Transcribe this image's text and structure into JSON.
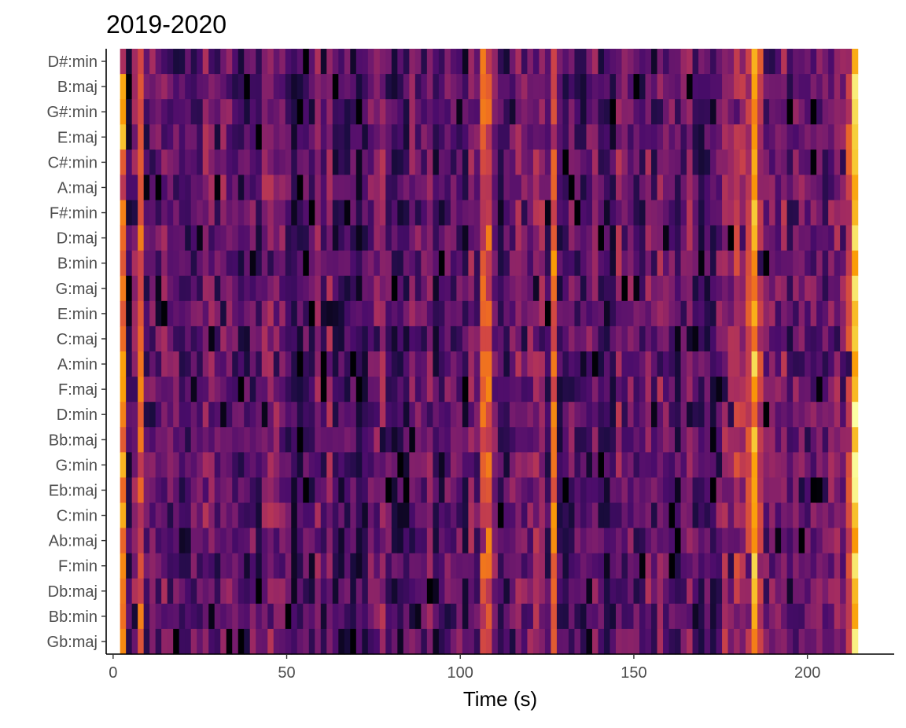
{
  "chart_data": {
    "type": "heatmap",
    "title": "2019-2020",
    "xlabel": "Time (s)",
    "ylabel": "",
    "xlim": [
      -2,
      225
    ],
    "x_ticks": [
      0,
      50,
      100,
      150,
      200
    ],
    "x_tick_labels": [
      "0",
      "50",
      "100",
      "150",
      "200"
    ],
    "x_range": [
      2,
      214.5
    ],
    "frame_width_s": 1.7,
    "y_categories": [
      "D#:min",
      "B:maj",
      "G#:min",
      "E:maj",
      "C#:min",
      "A:maj",
      "F#:min",
      "D:maj",
      "B:min",
      "G:maj",
      "E:min",
      "C:maj",
      "A:min",
      "F:maj",
      "D:min",
      "Bb:maj",
      "G:min",
      "Eb:maj",
      "C:min",
      "Ab:maj",
      "F:min",
      "Db:maj",
      "Bb:min",
      "Gb:maj"
    ],
    "colormap": "inferno",
    "value_range": [
      0,
      1
    ],
    "grid": false,
    "legend": "none",
    "bright_columns_s": [
      3.5,
      8.2,
      107.5,
      127.5,
      184.5
    ],
    "warm_bands_s": [
      [
        175,
        188
      ],
      [
        211,
        214.5
      ]
    ],
    "colors": {
      "background": "#ffffff",
      "axis": "#000000",
      "tick_text": "#4d4d4d",
      "colormap_stops": [
        "#000004",
        "#1b0c41",
        "#4a0c6b",
        "#781c6d",
        "#a52c60",
        "#cf4446",
        "#ed6925",
        "#fb9b06",
        "#f7d13d",
        "#fcffa4"
      ]
    }
  }
}
